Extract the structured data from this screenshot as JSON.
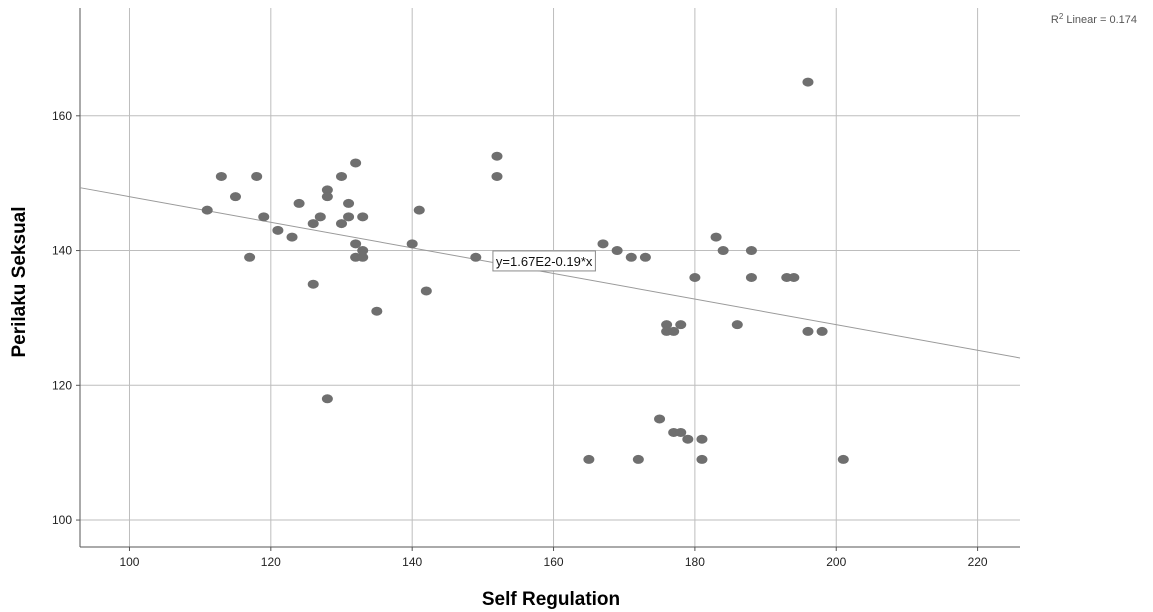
{
  "chart_data": {
    "type": "scatter",
    "xlabel": "Self Regulation",
    "ylabel": "Perilaku Seksual",
    "xlim": [
      93,
      226
    ],
    "ylim": [
      96,
      176
    ],
    "x_ticks": [
      100,
      120,
      140,
      160,
      180,
      200,
      220
    ],
    "y_ticks": [
      100,
      120,
      140,
      160
    ],
    "grid": true,
    "colors": {
      "points": "#6f6f6f",
      "grid": "#bdbdbd",
      "fit_line": "#9a9a9a",
      "axis": "#555555"
    },
    "fit_line": {
      "equation_label": "y=1.67E2-0.19*x",
      "intercept": 167,
      "slope": -0.19,
      "r2_prefix": "R",
      "r2_sup": "2",
      "r2_suffix": " Linear = 0.174",
      "label_anchor_x": 151
    },
    "points": [
      {
        "x": 111,
        "y": 146
      },
      {
        "x": 113,
        "y": 151
      },
      {
        "x": 115,
        "y": 148
      },
      {
        "x": 117,
        "y": 139
      },
      {
        "x": 118,
        "y": 151
      },
      {
        "x": 119,
        "y": 145
      },
      {
        "x": 121,
        "y": 143
      },
      {
        "x": 123,
        "y": 142
      },
      {
        "x": 124,
        "y": 147
      },
      {
        "x": 126,
        "y": 144
      },
      {
        "x": 126,
        "y": 135
      },
      {
        "x": 127,
        "y": 145
      },
      {
        "x": 128,
        "y": 149
      },
      {
        "x": 128,
        "y": 148
      },
      {
        "x": 128,
        "y": 118
      },
      {
        "x": 130,
        "y": 151
      },
      {
        "x": 130,
        "y": 144
      },
      {
        "x": 131,
        "y": 147
      },
      {
        "x": 131,
        "y": 145
      },
      {
        "x": 132,
        "y": 153
      },
      {
        "x": 132,
        "y": 141
      },
      {
        "x": 132,
        "y": 139
      },
      {
        "x": 133,
        "y": 145
      },
      {
        "x": 133,
        "y": 140
      },
      {
        "x": 133,
        "y": 139
      },
      {
        "x": 135,
        "y": 131
      },
      {
        "x": 140,
        "y": 141
      },
      {
        "x": 141,
        "y": 146
      },
      {
        "x": 142,
        "y": 134
      },
      {
        "x": 149,
        "y": 139
      },
      {
        "x": 152,
        "y": 154
      },
      {
        "x": 152,
        "y": 151
      },
      {
        "x": 165,
        "y": 109
      },
      {
        "x": 167,
        "y": 141
      },
      {
        "x": 169,
        "y": 140
      },
      {
        "x": 171,
        "y": 139
      },
      {
        "x": 172,
        "y": 109
      },
      {
        "x": 173,
        "y": 139
      },
      {
        "x": 175,
        "y": 115
      },
      {
        "x": 176,
        "y": 129
      },
      {
        "x": 176,
        "y": 128
      },
      {
        "x": 177,
        "y": 128
      },
      {
        "x": 177,
        "y": 113
      },
      {
        "x": 178,
        "y": 129
      },
      {
        "x": 178,
        "y": 113
      },
      {
        "x": 179,
        "y": 112
      },
      {
        "x": 180,
        "y": 136
      },
      {
        "x": 181,
        "y": 112
      },
      {
        "x": 181,
        "y": 109
      },
      {
        "x": 183,
        "y": 142
      },
      {
        "x": 184,
        "y": 140
      },
      {
        "x": 186,
        "y": 129
      },
      {
        "x": 188,
        "y": 140
      },
      {
        "x": 188,
        "y": 136
      },
      {
        "x": 193,
        "y": 136
      },
      {
        "x": 194,
        "y": 136
      },
      {
        "x": 196,
        "y": 165
      },
      {
        "x": 196,
        "y": 128
      },
      {
        "x": 198,
        "y": 128
      },
      {
        "x": 201,
        "y": 109
      }
    ]
  }
}
